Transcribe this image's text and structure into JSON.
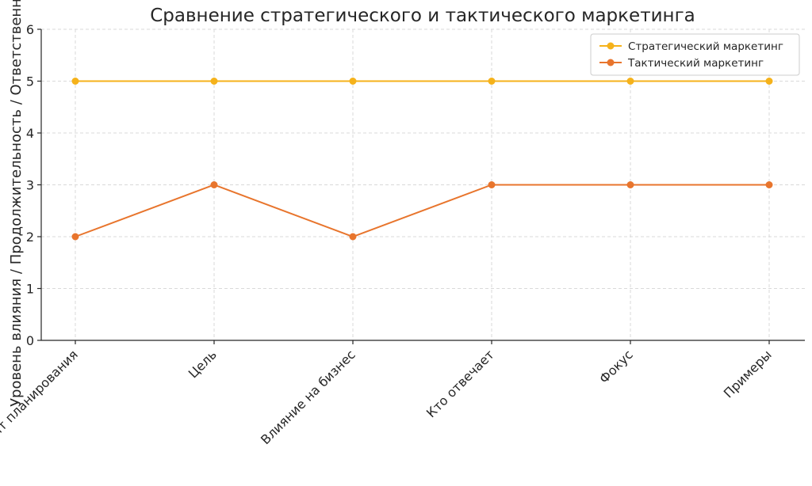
{
  "chart_data": {
    "type": "line",
    "title": "Сравнение стратегического и тактического маркетинга",
    "xlabel": "",
    "ylabel": "Уровень влияния / Продолжительность / Ответственность",
    "categories": [
      "Горизонт планирования",
      "Цель",
      "Влияние на бизнес",
      "Кто отвечает",
      "Фокус",
      "Примеры"
    ],
    "ylim": [
      0,
      6
    ],
    "yticks": [
      "0",
      "1",
      "2",
      "3",
      "4",
      "5",
      "6"
    ],
    "grid": true,
    "legend_position": "top-right",
    "series": [
      {
        "name": "Стратегический маркетинг",
        "color": "#f5b21b",
        "values": [
          5,
          5,
          5,
          5,
          5,
          5
        ]
      },
      {
        "name": "Тактический маркетинг",
        "color": "#e8752d",
        "values": [
          2,
          3,
          2,
          3,
          3,
          3
        ]
      }
    ]
  }
}
